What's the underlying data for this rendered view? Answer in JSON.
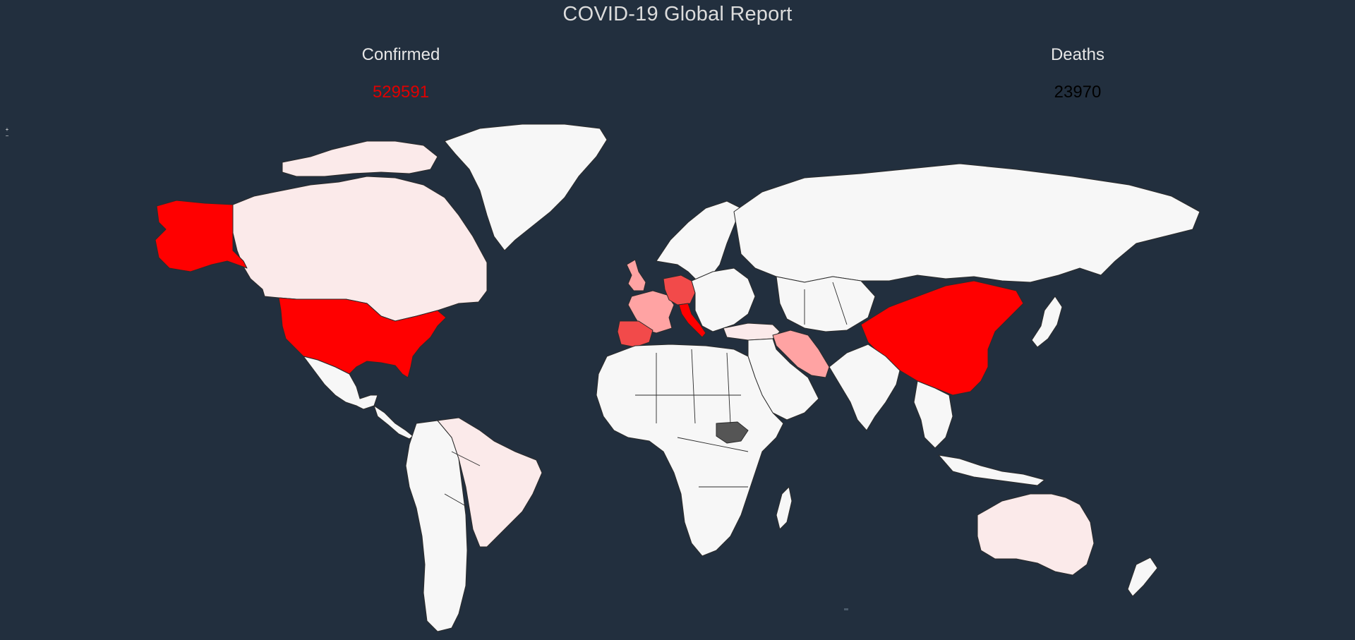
{
  "header": {
    "title": "COVID-19 Global Report"
  },
  "stats": {
    "confirmed": {
      "label": "Confirmed",
      "value": "529591",
      "color": "#e00000"
    },
    "deaths": {
      "label": "Deaths",
      "value": "23970",
      "color": "#000000"
    }
  },
  "zoom": {
    "in_label": "+",
    "out_label": "−"
  },
  "map": {
    "type": "choropleth",
    "background": "#222f3e",
    "colors": {
      "highest": "#ff0000",
      "high": "#f24a4a",
      "medium": "#ffa3a3",
      "low": "#fbeaea",
      "lowest": "#f7f7f7",
      "no_data": "#555555"
    },
    "regions": [
      {
        "name": "United States",
        "level": "highest"
      },
      {
        "name": "China",
        "level": "highest"
      },
      {
        "name": "Italy",
        "level": "highest"
      },
      {
        "name": "Spain",
        "level": "high"
      },
      {
        "name": "Germany",
        "level": "high"
      },
      {
        "name": "France",
        "level": "medium"
      },
      {
        "name": "Iran",
        "level": "medium"
      },
      {
        "name": "United Kingdom",
        "level": "medium"
      },
      {
        "name": "Canada",
        "level": "low"
      },
      {
        "name": "Brazil",
        "level": "low"
      },
      {
        "name": "Australia",
        "level": "low"
      },
      {
        "name": "Turkey",
        "level": "low"
      },
      {
        "name": "Russia",
        "level": "lowest"
      },
      {
        "name": "Greenland",
        "level": "lowest"
      },
      {
        "name": "South Sudan",
        "level": "no_data"
      }
    ]
  }
}
